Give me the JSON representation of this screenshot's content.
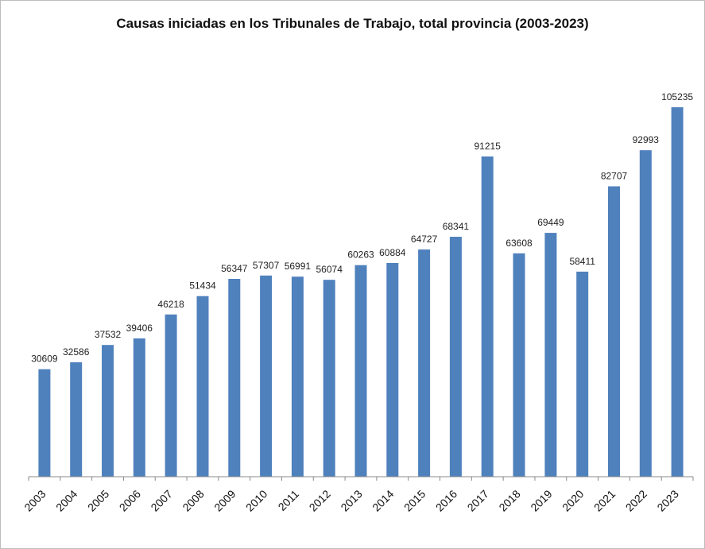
{
  "chart_data": {
    "type": "bar",
    "title": "Causas iniciadas en los Tribunales de Trabajo, total provincia (2003-2023)",
    "xlabel": "",
    "ylabel": "",
    "categories": [
      "2003",
      "2004",
      "2005",
      "2006",
      "2007",
      "2008",
      "2009",
      "2010",
      "2011",
      "2012",
      "2013",
      "2014",
      "2015",
      "2016",
      "2017",
      "2018",
      "2019",
      "2020",
      "2021",
      "2022",
      "2023"
    ],
    "values": [
      30609,
      32586,
      37532,
      39406,
      46218,
      51434,
      56347,
      57307,
      56991,
      56074,
      60263,
      60884,
      64727,
      68341,
      91215,
      63608,
      69449,
      58411,
      82707,
      92993,
      105235
    ],
    "ylim": [
      0,
      120000
    ],
    "grid": false,
    "legend": "none",
    "bar_color": "#4f81bd",
    "axis_color": "#8a8a8a"
  }
}
